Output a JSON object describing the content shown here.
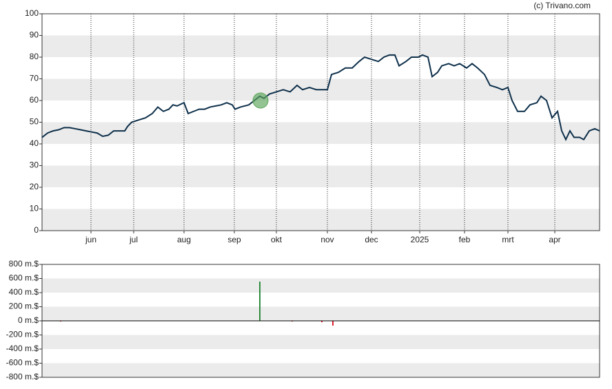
{
  "source": "(c) Trivano.com",
  "chart_data": [
    {
      "type": "line",
      "xlim": [
        0,
        809
      ],
      "xticks": [
        {
          "value": 71,
          "label": "jun"
        },
        {
          "value": 133,
          "label": "jul"
        },
        {
          "value": 206,
          "label": "aug"
        },
        {
          "value": 279,
          "label": "sep"
        },
        {
          "value": 340,
          "label": "okt"
        },
        {
          "value": 414,
          "label": "nov"
        },
        {
          "value": 478,
          "label": "dec"
        },
        {
          "value": 548,
          "label": "2025"
        },
        {
          "value": 613,
          "label": "feb"
        },
        {
          "value": 676,
          "label": "mrt"
        },
        {
          "value": 744,
          "label": "apr"
        }
      ],
      "ylim": [
        0,
        100
      ],
      "yticks": [
        0,
        10,
        20,
        30,
        40,
        50,
        60,
        70,
        80,
        90,
        100
      ],
      "grid": true,
      "series": [
        {
          "color": "#0d2f4a",
          "x": [
            0,
            8,
            16,
            24,
            32,
            40,
            48,
            56,
            64,
            72,
            80,
            88,
            96,
            104,
            112,
            120,
            124,
            130,
            140,
            150,
            160,
            168,
            176,
            184,
            190,
            196,
            206,
            212,
            220,
            228,
            236,
            244,
            252,
            260,
            268,
            276,
            280,
            288,
            300,
            308,
            316,
            322,
            330,
            340,
            350,
            360,
            370,
            378,
            388,
            398,
            408,
            414,
            420,
            430,
            440,
            450,
            460,
            468,
            478,
            488,
            496,
            504,
            512,
            518,
            528,
            536,
            546,
            552,
            560,
            566,
            574,
            580,
            590,
            598,
            606,
            616,
            624,
            632,
            642,
            650,
            660,
            668,
            676,
            682,
            690,
            700,
            708,
            718,
            724,
            732,
            740,
            748,
            754,
            760,
            766,
            772,
            780,
            786,
            794,
            802,
            809
          ],
          "values": [
            43,
            45,
            46,
            46.5,
            47.5,
            47.5,
            47,
            46.5,
            46,
            45.5,
            45,
            43.5,
            44,
            46,
            46,
            46,
            48,
            50,
            51,
            52,
            54,
            57,
            55,
            56,
            58,
            57.5,
            59,
            54,
            55,
            56,
            56,
            57,
            57.5,
            58,
            59,
            58,
            56,
            57,
            58,
            60,
            62,
            61,
            63,
            64,
            65,
            64,
            67,
            65,
            66,
            65,
            65,
            65,
            72,
            73,
            75,
            75,
            78,
            80,
            79,
            78,
            80,
            81,
            81,
            76,
            78,
            80,
            80,
            81,
            80,
            71,
            73,
            76,
            77,
            76,
            77,
            75,
            77,
            75,
            72,
            67,
            66,
            65,
            66,
            60,
            55,
            55,
            58,
            59,
            62,
            60,
            52,
            55,
            46,
            42,
            46,
            43,
            43,
            42,
            46,
            47,
            46
          ]
        }
      ],
      "markers": [
        {
          "x": 317,
          "y": 60,
          "color": "#5aa55a"
        }
      ]
    },
    {
      "type": "bar",
      "xlim": [
        0,
        809
      ],
      "ylim": [
        -800,
        800
      ],
      "yticks": [
        {
          "value": -800,
          "label": "-800 m.$"
        },
        {
          "value": -600,
          "label": "-600 m.$"
        },
        {
          "value": -400,
          "label": "-400 m.$"
        },
        {
          "value": -200,
          "label": "-200 m.$"
        },
        {
          "value": 0,
          "label": "0 m.$"
        },
        {
          "value": 200,
          "label": "200 m.$"
        },
        {
          "value": 400,
          "label": "400 m.$"
        },
        {
          "value": 600,
          "label": "600 m.$"
        },
        {
          "value": 800,
          "label": "800 m.$"
        }
      ],
      "grid": true,
      "x": [
        27,
        316,
        363,
        406,
        422
      ],
      "values": [
        -10,
        556,
        -10,
        -20,
        -68
      ],
      "colors": [
        "#e0202e",
        "#2e8b3e",
        "#e0202e",
        "#e0202e",
        "#e0202e"
      ]
    }
  ]
}
